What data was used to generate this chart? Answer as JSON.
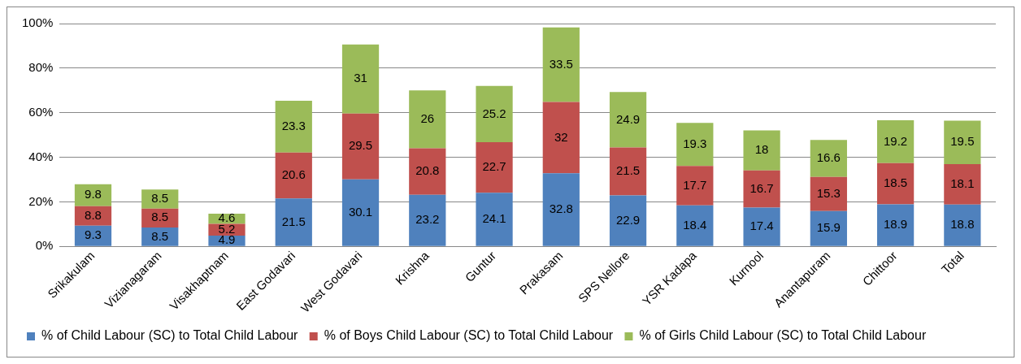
{
  "chart_data": {
    "type": "bar",
    "stacked": true,
    "data_labels": true,
    "categories": [
      "Srikakulam",
      "Vizianagaram",
      "Visakhaptnam",
      "East Godavari",
      "West Godavari",
      "Krishna",
      "Guntur",
      "Prakasam",
      "SPS Nellore",
      "YSR Kadapa",
      "Kurnool",
      "Anantapuram",
      "Chittoor",
      "Total"
    ],
    "series": [
      {
        "name": "% of Child Labour (SC) to Total Child Labour",
        "color": "#4f81bd",
        "values": [
          9.3,
          8.5,
          4.9,
          21.5,
          30.1,
          23.2,
          24.1,
          32.8,
          22.9,
          18.4,
          17.4,
          15.9,
          18.9,
          18.8
        ]
      },
      {
        "name": "% of Boys Child Labour (SC) to Total Child Labour",
        "color": "#c0504d",
        "values": [
          8.8,
          8.5,
          5.2,
          20.6,
          29.5,
          20.8,
          22.7,
          32,
          21.5,
          17.7,
          16.7,
          15.3,
          18.5,
          18.1
        ]
      },
      {
        "name": "% of Girls Child Labour (SC) to Total Child Labour",
        "color": "#9bbb59",
        "values": [
          9.8,
          8.5,
          4.6,
          23.3,
          31,
          26,
          25.2,
          33.5,
          24.9,
          19.3,
          18,
          16.6,
          19.2,
          19.5
        ]
      }
    ],
    "ylim": [
      0,
      100
    ],
    "yticks": [
      {
        "value": 0,
        "label": "0%"
      },
      {
        "value": 20,
        "label": "20%"
      },
      {
        "value": 40,
        "label": "40%"
      },
      {
        "value": 60,
        "label": "60%"
      },
      {
        "value": 80,
        "label": "80%"
      },
      {
        "value": 100,
        "label": "100%"
      }
    ],
    "grid": "y",
    "legend": "bottom"
  }
}
